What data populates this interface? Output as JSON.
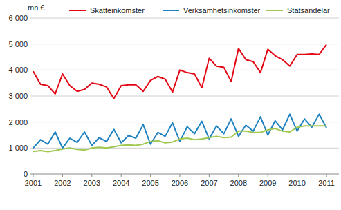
{
  "chart_data": {
    "type": "line",
    "y_label": "mn €",
    "categories": [
      "2001",
      null,
      null,
      null,
      "2002",
      null,
      null,
      null,
      "2003",
      null,
      null,
      null,
      "2004",
      null,
      null,
      null,
      "2005",
      null,
      null,
      null,
      "2006",
      null,
      null,
      null,
      "2007",
      null,
      null,
      null,
      "2008",
      null,
      null,
      null,
      "2009",
      null,
      null,
      null,
      "2010",
      null,
      null,
      null,
      "2011"
    ],
    "series": [
      {
        "name": "Skatteinkomster",
        "color": "#e30613",
        "values": [
          3950,
          3450,
          3400,
          3080,
          3850,
          3400,
          3180,
          3250,
          3500,
          3450,
          3350,
          2900,
          3400,
          3430,
          3430,
          3180,
          3600,
          3750,
          3650,
          3150,
          4000,
          3900,
          3850,
          3320,
          4450,
          4150,
          4100,
          3560,
          4830,
          4400,
          4320,
          3900,
          4800,
          4550,
          4400,
          4150,
          4600,
          4600,
          4620,
          4600,
          4980
        ]
      },
      {
        "name": "Verksamhetsinkomster",
        "color": "#1f82c0",
        "values": [
          1000,
          1320,
          1150,
          1620,
          1000,
          1380,
          1220,
          1620,
          1100,
          1400,
          1250,
          1720,
          1200,
          1480,
          1380,
          1900,
          1150,
          1600,
          1450,
          1970,
          1250,
          1820,
          1550,
          2030,
          1350,
          1850,
          1550,
          2120,
          1450,
          1880,
          1650,
          2200,
          1500,
          2050,
          1700,
          2300,
          1650,
          2120,
          1800,
          2300,
          1780
        ]
      },
      {
        "name": "Statsandelar",
        "color": "#a0c850",
        "values": [
          870,
          900,
          860,
          900,
          960,
          1000,
          950,
          920,
          1000,
          1030,
          1000,
          1050,
          1100,
          1120,
          1100,
          1150,
          1250,
          1280,
          1200,
          1230,
          1350,
          1380,
          1320,
          1350,
          1400,
          1450,
          1400,
          1420,
          1650,
          1650,
          1600,
          1600,
          1700,
          1750,
          1650,
          1620,
          1800,
          1850,
          1850,
          1850,
          1850
        ]
      }
    ],
    "ylim": [
      0,
      6000
    ],
    "yticks": [
      {
        "value": 0,
        "label": "0"
      },
      {
        "value": 1000,
        "label": "1 000"
      },
      {
        "value": 2000,
        "label": "2 000"
      },
      {
        "value": 3000,
        "label": "3 000"
      },
      {
        "value": 4000,
        "label": "4 000"
      },
      {
        "value": 5000,
        "label": "5 000"
      },
      {
        "value": 6000,
        "label": "6 000"
      }
    ],
    "grid": true,
    "legend": "top"
  }
}
